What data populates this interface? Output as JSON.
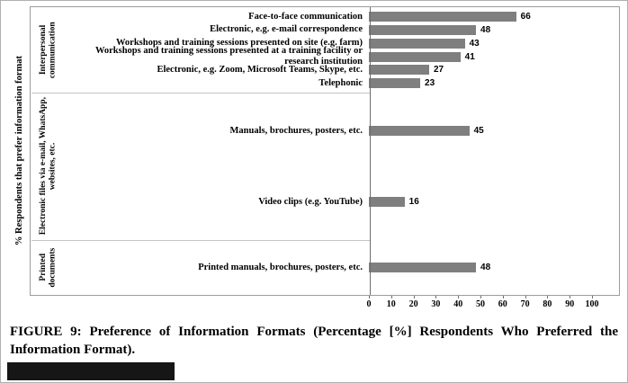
{
  "caption": {
    "label": "FIGURE 9:",
    "text": "Preference of Information Formats (Percentage [%] Respondents Who Preferred the Information Format)."
  },
  "chart_data": {
    "type": "bar",
    "orientation": "horizontal",
    "title": "",
    "xlabel": "",
    "ylabel": "% Respondents that prefer information format",
    "xlim": [
      0,
      100
    ],
    "xticks": [
      0,
      10,
      20,
      30,
      40,
      50,
      60,
      70,
      80,
      90,
      100
    ],
    "grid": false,
    "legend": false,
    "bar_color": "#7f7f7f",
    "groups": [
      {
        "label": "Interpersonal communication",
        "items": [
          {
            "label": "Face-to-face communication",
            "value": 66
          },
          {
            "label": "Electronic, e.g. e-mail correspondence",
            "value": 48
          },
          {
            "label": "Workshops and training sessions presented on site (e.g. farm)",
            "value": 43
          },
          {
            "label": "Workshops and training sessions presented at a training facility or research institution",
            "value": 41
          },
          {
            "label": "Electronic, e.g. Zoom, Microsoft Teams, Skype, etc.",
            "value": 27
          },
          {
            "label": "Telephonic",
            "value": 23
          }
        ]
      },
      {
        "label": "Electronic files via e-mail, WhatsApp, websites, etc.",
        "items": [
          {
            "label": "Manuals, brochures, posters, etc.",
            "value": 45
          },
          {
            "label": "Video clips (e.g. YouTube)",
            "value": 16
          }
        ]
      },
      {
        "label": "Printed documents",
        "items": [
          {
            "label": "Printed manuals, brochures, posters, etc.",
            "value": 48
          }
        ]
      }
    ]
  }
}
